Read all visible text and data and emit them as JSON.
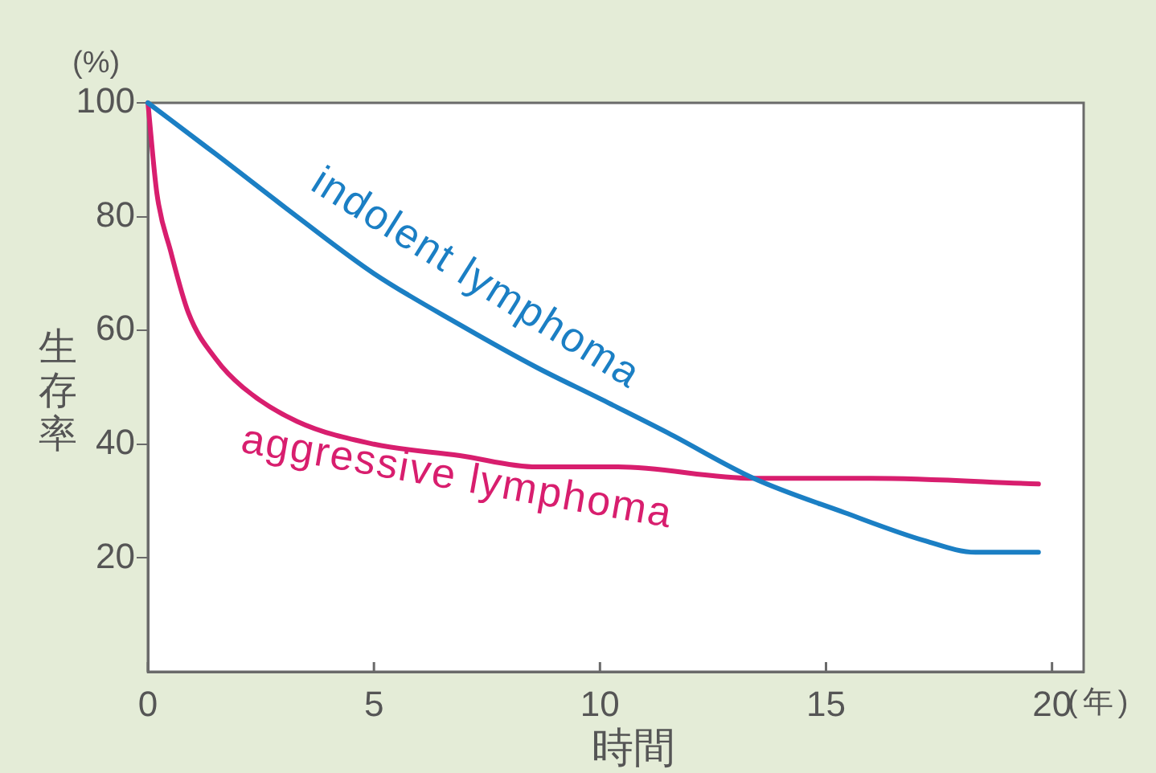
{
  "chart_data": {
    "type": "line",
    "xlabel": "時間",
    "ylabel": "生存率",
    "annotations": [
      "(%)",
      "(年)"
    ],
    "xlim": [
      0,
      20.7
    ],
    "xticks": [
      0,
      5,
      10,
      15,
      20
    ],
    "ylim": [
      0,
      100
    ],
    "yticks": [
      20,
      40,
      60,
      80,
      100
    ],
    "grid": false,
    "legend": false,
    "marker": "none",
    "line_style": "solid",
    "series": [
      {
        "name": "indolent lymphoma",
        "color": "#1b7fc4",
        "x": [
          0,
          1.5,
          3.3,
          5,
          6.9,
          8.6,
          10,
          11.5,
          13.4,
          15.4,
          17.2,
          18.3,
          19.7
        ],
        "values": [
          100,
          91,
          80,
          70,
          61,
          53.5,
          48,
          42,
          34,
          28,
          23,
          21,
          21
        ]
      },
      {
        "name": "aggressive lymphoma",
        "color": "#d81e6e",
        "x": [
          0,
          0.2,
          0.5,
          0.9,
          1.5,
          2.1,
          3.3,
          5,
          6.9,
          8.6,
          10.4,
          13.4,
          16,
          19.7
        ],
        "values": [
          100,
          84,
          74,
          63,
          55,
          50,
          44,
          40,
          38,
          36,
          36,
          34,
          34,
          33
        ]
      }
    ]
  }
}
